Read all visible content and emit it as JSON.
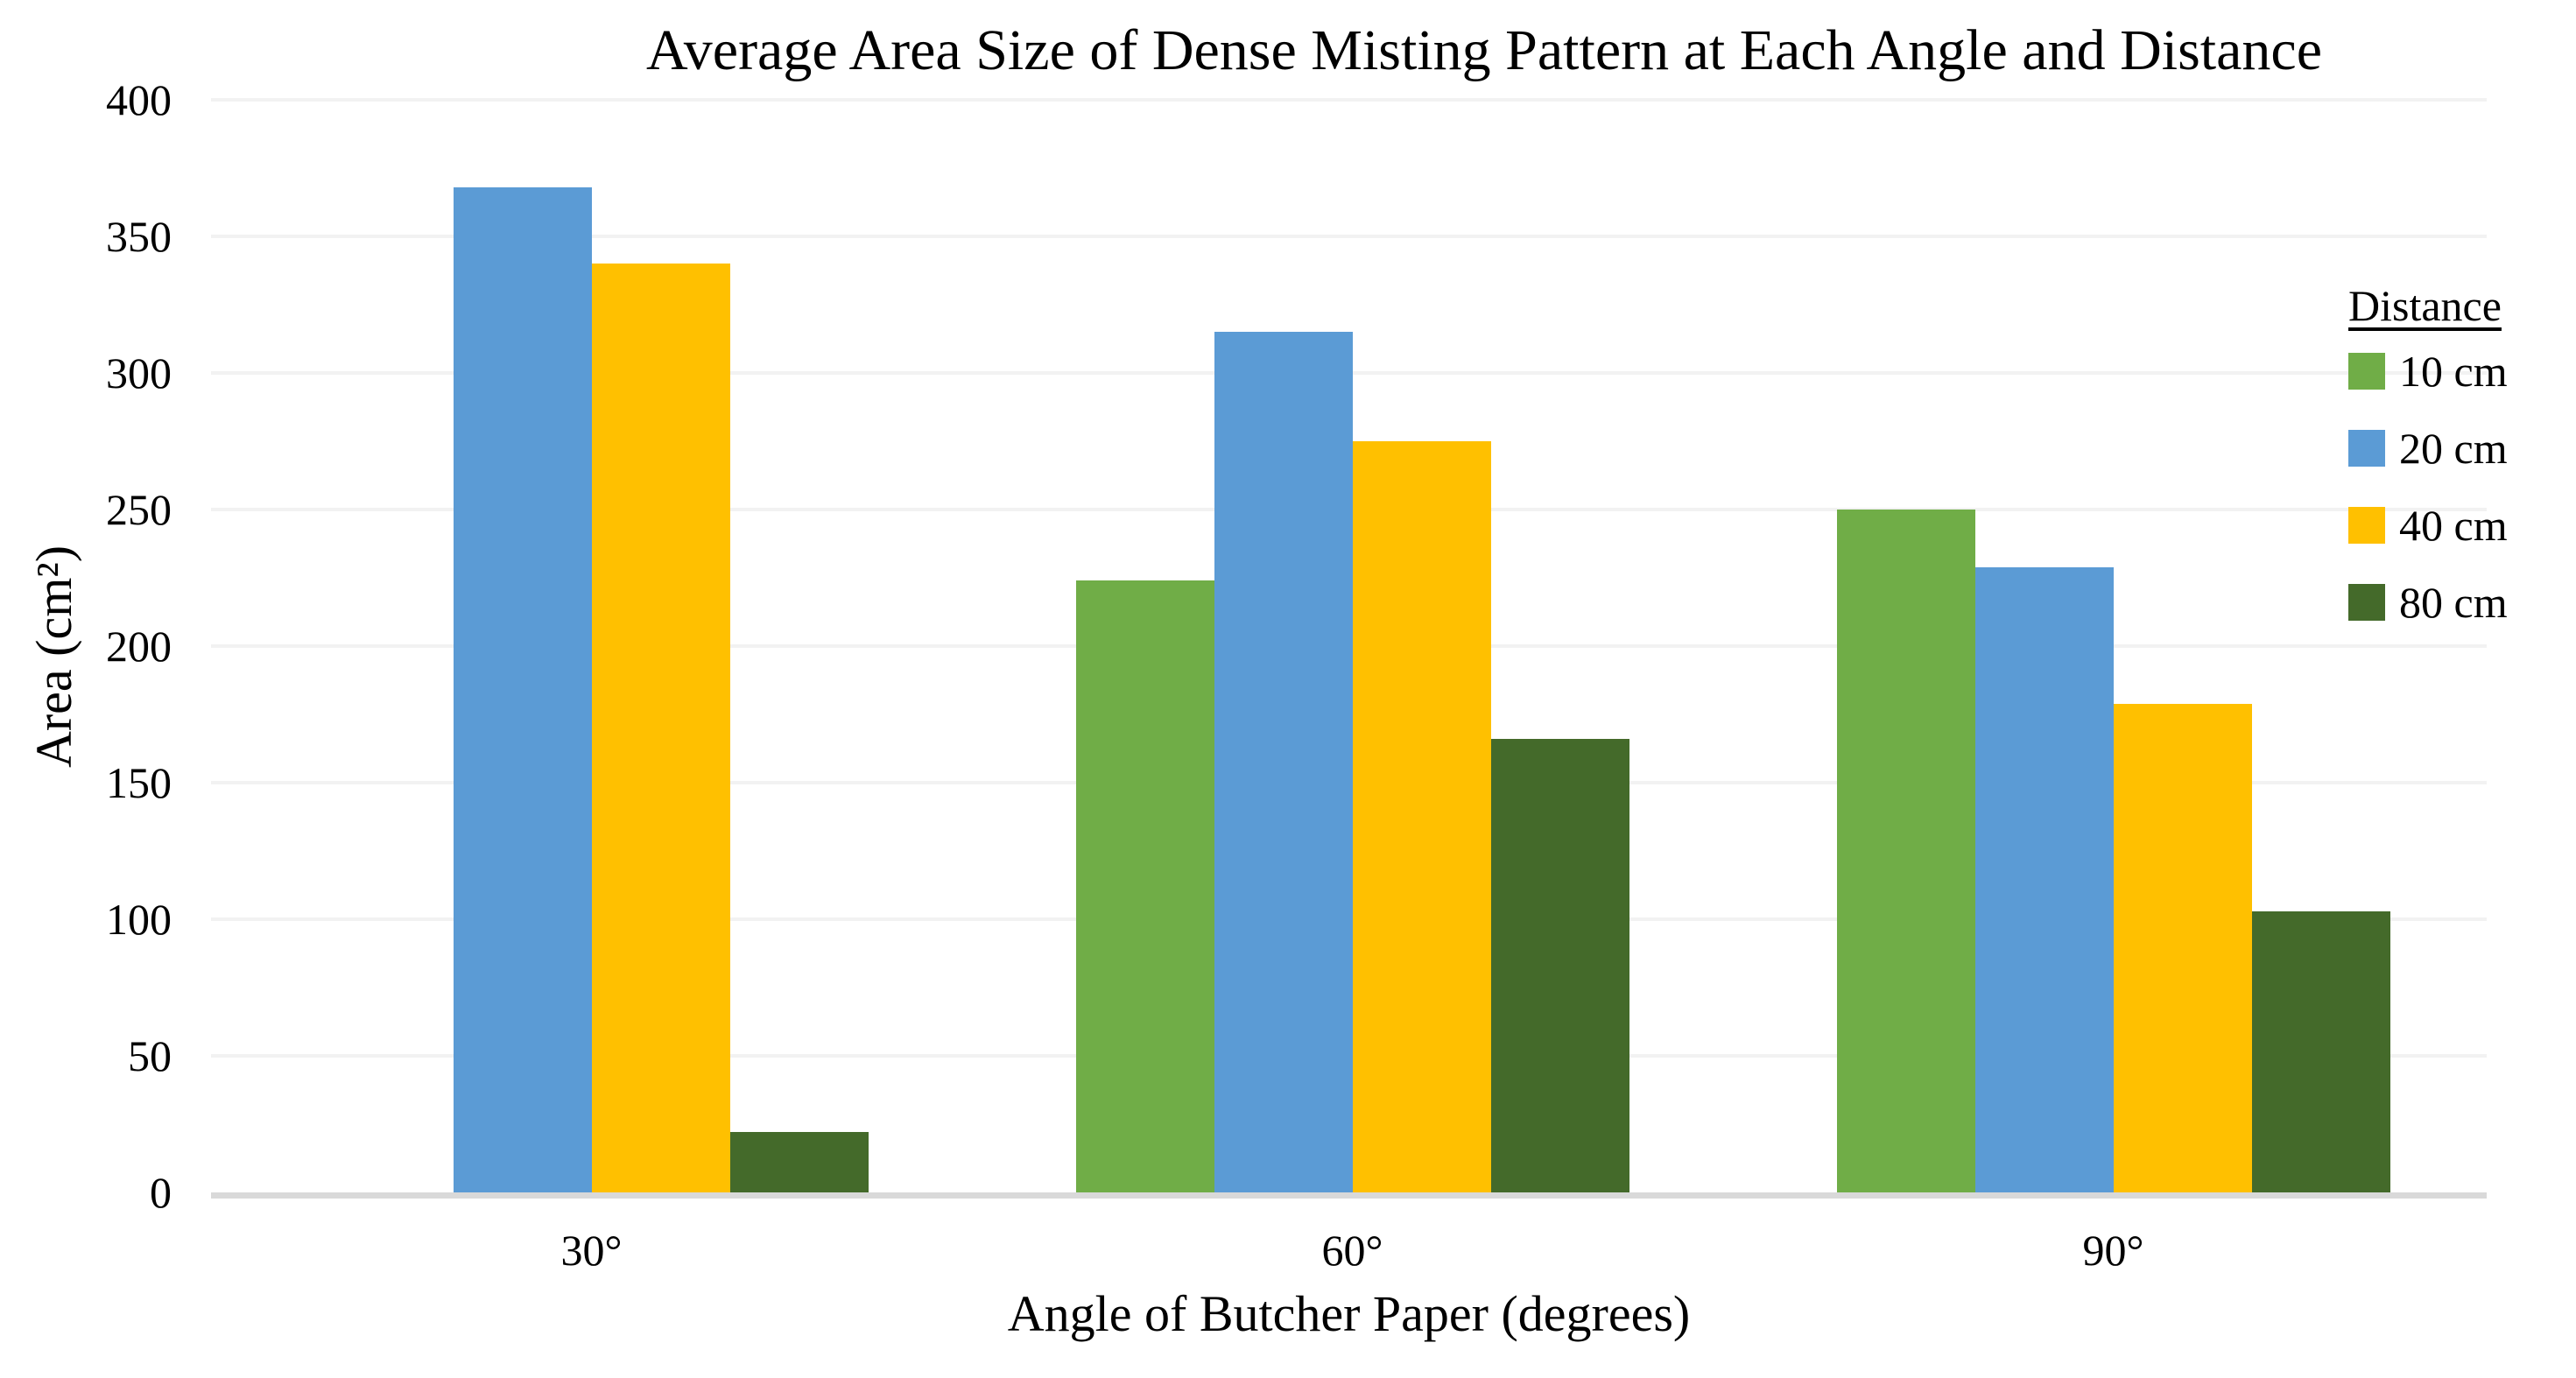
{
  "chart_data": {
    "type": "bar",
    "title": "Average Area Size of Dense Misting Pattern at Each Angle and Distance",
    "xlabel": "Angle of Butcher Paper (degrees)",
    "ylabel": "Area (cm²)",
    "categories": [
      "30°",
      "60°",
      "90°"
    ],
    "series": [
      {
        "name": "10 cm",
        "color": "#70AD47",
        "values": [
          null,
          224,
          250
        ]
      },
      {
        "name": "20 cm",
        "color": "#5B9BD5",
        "values": [
          368,
          315,
          229
        ]
      },
      {
        "name": "40 cm",
        "color": "#FFC000",
        "values": [
          340,
          275,
          179
        ]
      },
      {
        "name": "80 cm",
        "color": "#446A2A",
        "values": [
          22,
          166,
          103
        ]
      }
    ],
    "ylim": [
      0,
      400
    ],
    "ytick_step": 50,
    "ytick_labels": [
      "0",
      "50",
      "100",
      "150",
      "200",
      "250",
      "300",
      "350",
      "400"
    ],
    "grid": true,
    "legend_position": "right",
    "legend_title": "Distance"
  },
  "colors": {
    "background": "#FFFFFF",
    "gridline": "#F2F2F2",
    "axis_line": "#D9D9D9",
    "text": "#000000"
  }
}
